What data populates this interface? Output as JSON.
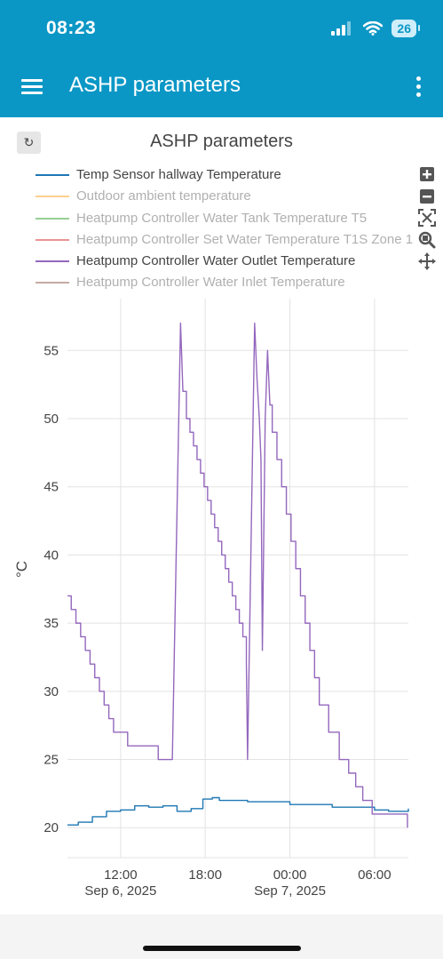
{
  "status_bar": {
    "time": "08:23",
    "battery": "26"
  },
  "app_bar": {
    "title": "ASHP parameters",
    "menu_icon": "hamburger-icon",
    "more_icon": "more-vertical-icon"
  },
  "chart_panel": {
    "refresh_icon": "refresh-icon",
    "refresh_glyph": "↻"
  },
  "modebar": [
    {
      "name": "zoom-in-icon",
      "glyph": "⊞"
    },
    {
      "name": "zoom-out-icon",
      "glyph": "⊟"
    },
    {
      "name": "autoscale-icon",
      "glyph": "⤧"
    },
    {
      "name": "zoom-icon",
      "glyph": "🔍"
    },
    {
      "name": "pan-icon",
      "glyph": "✥"
    }
  ],
  "chart_data": {
    "type": "line",
    "title": "ASHP parameters",
    "ylabel": "°C",
    "xlabel": "",
    "ylim": [
      17.8,
      58.8
    ],
    "xlim": [
      "2025-09-06T08:14",
      "2025-09-07T08:24"
    ],
    "y_ticks": [
      20,
      25,
      30,
      35,
      40,
      45,
      50,
      55
    ],
    "x_ticks": [
      {
        "time": "2025-09-06T12:00",
        "line1": "12:00",
        "line2": "Sep 6, 2025"
      },
      {
        "time": "2025-09-06T18:00",
        "line1": "18:00",
        "line2": ""
      },
      {
        "time": "2025-09-07T00:00",
        "line1": "00:00",
        "line2": "Sep 7, 2025"
      },
      {
        "time": "2025-09-07T06:00",
        "line1": "06:00",
        "line2": ""
      }
    ],
    "grid": true,
    "legend_position": "top",
    "series": [
      {
        "name": "Temp Sensor hallway Temperature",
        "color": "#1f77b4",
        "visible": true,
        "points": [
          [
            "2025-09-06T08:14",
            20.2
          ],
          [
            "2025-09-06T09:00",
            20.4
          ],
          [
            "2025-09-06T10:00",
            20.8
          ],
          [
            "2025-09-06T11:00",
            21.2
          ],
          [
            "2025-09-06T12:00",
            21.3
          ],
          [
            "2025-09-06T13:00",
            21.6
          ],
          [
            "2025-09-06T14:00",
            21.5
          ],
          [
            "2025-09-06T15:00",
            21.6
          ],
          [
            "2025-09-06T16:00",
            21.2
          ],
          [
            "2025-09-06T17:00",
            21.4
          ],
          [
            "2025-09-06T17:50",
            22.1
          ],
          [
            "2025-09-06T18:30",
            22.2
          ],
          [
            "2025-09-06T19:00",
            22.0
          ],
          [
            "2025-09-06T21:00",
            21.9
          ],
          [
            "2025-09-07T00:00",
            21.7
          ],
          [
            "2025-09-07T03:00",
            21.5
          ],
          [
            "2025-09-07T06:00",
            21.3
          ],
          [
            "2025-09-07T07:00",
            21.2
          ],
          [
            "2025-09-07T08:24",
            21.4
          ]
        ]
      },
      {
        "name": "Outdoor ambient temperature",
        "color": "#ff9f1c",
        "visible": false
      },
      {
        "name": "Heatpump Controller Water Tank Temperature T5",
        "color": "#2ca02c",
        "visible": false
      },
      {
        "name": "Heatpump Controller Set Water Temperature T1S Zone 1",
        "color": "#d62728",
        "visible": false
      },
      {
        "name": "Heatpump Controller Water Outlet Temperature",
        "color": "#9467bd",
        "visible": true,
        "points": [
          [
            "2025-09-06T08:14",
            37
          ],
          [
            "2025-09-06T08:30",
            36
          ],
          [
            "2025-09-06T08:50",
            35
          ],
          [
            "2025-09-06T09:10",
            34
          ],
          [
            "2025-09-06T09:30",
            33
          ],
          [
            "2025-09-06T09:50",
            32
          ],
          [
            "2025-09-06T10:10",
            31
          ],
          [
            "2025-09-06T10:30",
            30
          ],
          [
            "2025-09-06T10:50",
            29
          ],
          [
            "2025-09-06T11:10",
            28
          ],
          [
            "2025-09-06T11:30",
            27
          ],
          [
            "2025-09-06T12:00",
            27
          ],
          [
            "2025-09-06T12:30",
            26
          ],
          [
            "2025-09-06T14:30",
            26
          ],
          [
            "2025-09-06T14:40",
            25
          ],
          [
            "2025-09-06T15:40",
            25
          ],
          [
            "2025-09-06T16:15",
            57
          ],
          [
            "2025-09-06T16:25",
            52
          ],
          [
            "2025-09-06T16:40",
            50
          ],
          [
            "2025-09-06T16:55",
            49
          ],
          [
            "2025-09-06T17:10",
            48
          ],
          [
            "2025-09-06T17:25",
            47
          ],
          [
            "2025-09-06T17:40",
            46
          ],
          [
            "2025-09-06T17:55",
            45
          ],
          [
            "2025-09-06T18:10",
            44
          ],
          [
            "2025-09-06T18:25",
            43
          ],
          [
            "2025-09-06T18:40",
            42
          ],
          [
            "2025-09-06T18:55",
            41
          ],
          [
            "2025-09-06T19:10",
            40
          ],
          [
            "2025-09-06T19:25",
            39
          ],
          [
            "2025-09-06T19:40",
            38
          ],
          [
            "2025-09-06T19:55",
            37
          ],
          [
            "2025-09-06T20:10",
            36
          ],
          [
            "2025-09-06T20:25",
            35
          ],
          [
            "2025-09-06T20:40",
            34
          ],
          [
            "2025-09-06T20:55",
            32
          ],
          [
            "2025-09-06T21:00",
            25
          ],
          [
            "2025-09-06T21:30",
            57
          ],
          [
            "2025-09-06T21:40",
            53
          ],
          [
            "2025-09-06T21:50",
            50
          ],
          [
            "2025-09-06T21:57",
            47
          ],
          [
            "2025-09-06T22:03",
            33
          ],
          [
            "2025-09-06T22:15",
            50
          ],
          [
            "2025-09-06T22:25",
            55
          ],
          [
            "2025-09-06T22:35",
            51
          ],
          [
            "2025-09-06T22:45",
            49
          ],
          [
            "2025-09-06T23:05",
            47
          ],
          [
            "2025-09-06T23:25",
            45
          ],
          [
            "2025-09-06T23:45",
            43
          ],
          [
            "2025-09-07T00:05",
            41
          ],
          [
            "2025-09-07T00:25",
            39
          ],
          [
            "2025-09-07T00:45",
            37
          ],
          [
            "2025-09-07T01:05",
            35
          ],
          [
            "2025-09-07T01:25",
            33
          ],
          [
            "2025-09-07T01:45",
            31
          ],
          [
            "2025-09-07T02:05",
            29
          ],
          [
            "2025-09-07T02:45",
            27
          ],
          [
            "2025-09-07T03:30",
            25
          ],
          [
            "2025-09-07T04:10",
            24
          ],
          [
            "2025-09-07T04:40",
            23
          ],
          [
            "2025-09-07T05:10",
            22
          ],
          [
            "2025-09-07T05:50",
            21
          ],
          [
            "2025-09-07T07:40",
            21
          ],
          [
            "2025-09-07T08:20",
            20
          ]
        ]
      },
      {
        "name": "Heatpump Controller Water Inlet Temperature",
        "color": "#8c564b",
        "visible": false
      }
    ]
  }
}
